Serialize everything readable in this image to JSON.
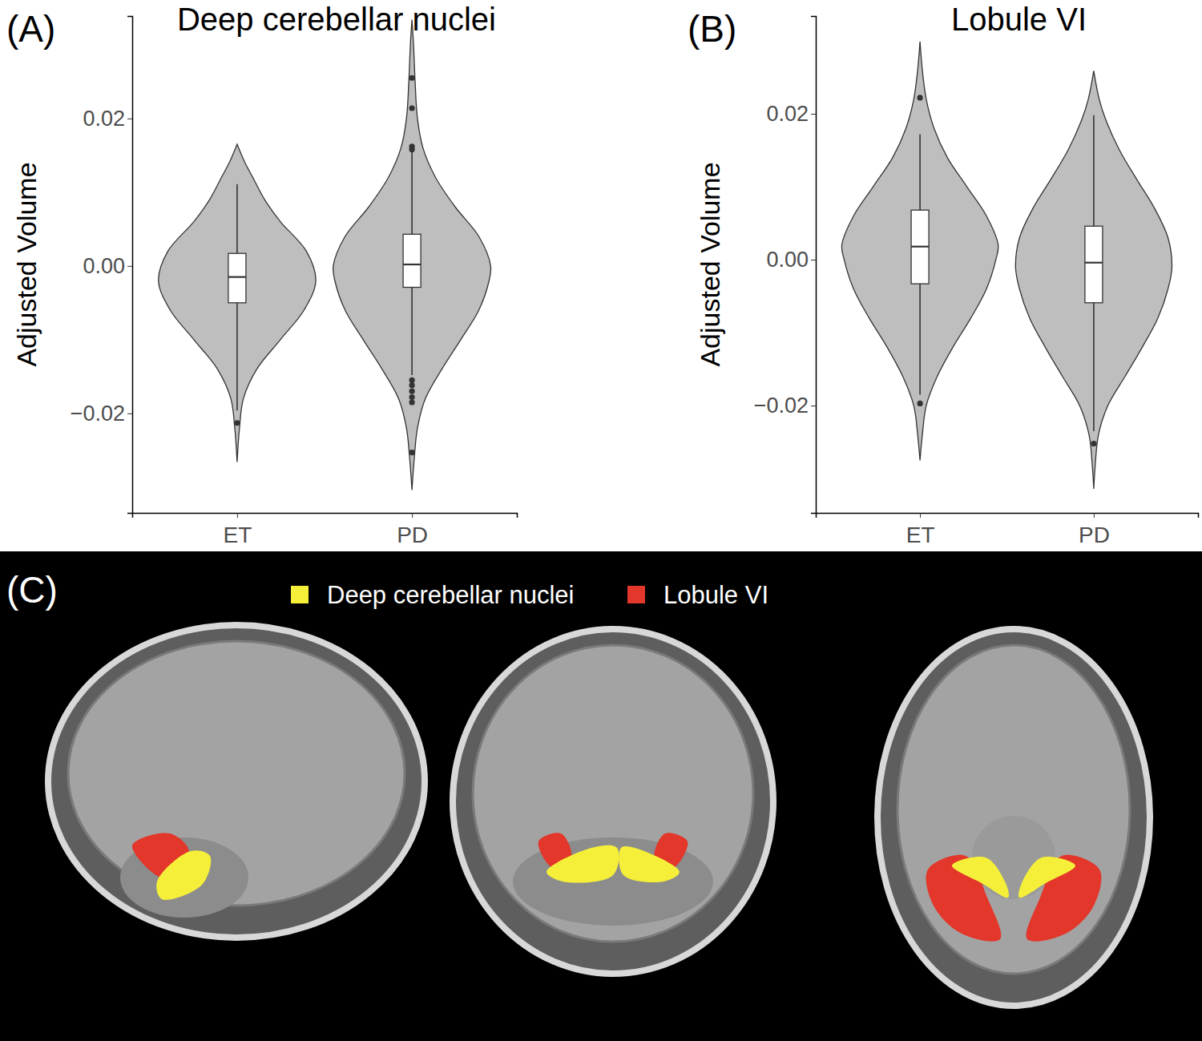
{
  "chart_data": [
    {
      "type": "violin",
      "title": "Deep cerebellar nuclei",
      "annotations": [
        "(A)"
      ],
      "y_label": "Adjusted Volume",
      "categories": [
        "ET",
        "PD"
      ],
      "color": "#bebebe",
      "ylim": [
        -0.0335,
        0.0339
      ],
      "yticks": [
        {
          "value": -0.02,
          "label": "−0.02"
        },
        {
          "value": 0,
          "label": "0.00"
        },
        {
          "value": 0.02,
          "label": "0.02"
        }
      ],
      "violins": [
        {
          "density": {
            "y": [
              -0.0266,
              -0.022,
              -0.018,
              -0.014,
              -0.01,
              -0.006,
              -0.002,
              0.002,
              0.006,
              0.009,
              0.012,
              0.014,
              0.0165
            ],
            "width": [
              0,
              0.03,
              0.08,
              0.25,
              0.55,
              0.85,
              1.0,
              0.88,
              0.55,
              0.35,
              0.2,
              0.1,
              0
            ]
          },
          "box": {
            "whisker_low": -0.0196,
            "q1": -0.005,
            "median": -0.0015,
            "q3": 0.0017,
            "whisker_high": 0.0111
          },
          "outliers": [
            -0.0213
          ]
        },
        {
          "density": {
            "y": [
              -0.0304,
              -0.026,
              -0.022,
              -0.018,
              -0.014,
              -0.01,
              -0.006,
              -0.002,
              0.0,
              0.004,
              0.008,
              0.012,
              0.016,
              0.02,
              0.025,
              0.03,
              0.0334
            ],
            "width": [
              0,
              0.03,
              0.07,
              0.17,
              0.38,
              0.62,
              0.85,
              0.98,
              1.0,
              0.85,
              0.55,
              0.3,
              0.14,
              0.07,
              0.04,
              0.02,
              0
            ]
          },
          "box": {
            "whisker_low": -0.0148,
            "q1": -0.0029,
            "median": 0.0002,
            "q3": 0.0043,
            "whisker_high": 0.0155
          },
          "outliers": [
            0.0255,
            0.0214,
            0.0162,
            0.0158,
            -0.0155,
            -0.0162,
            -0.017,
            -0.0178,
            -0.0185,
            -0.0253
          ]
        }
      ]
    },
    {
      "type": "violin",
      "title": "Lobule VI",
      "annotations": [
        "(B)"
      ],
      "y_label": "Adjusted Volume",
      "categories": [
        "ET",
        "PD"
      ],
      "color": "#bebebe",
      "ylim": [
        -0.0347,
        0.0334
      ],
      "yticks": [
        {
          "value": -0.02,
          "label": "−0.02"
        },
        {
          "value": 0,
          "label": "0.00"
        },
        {
          "value": 0.02,
          "label": "0.02"
        }
      ],
      "violins": [
        {
          "density": {
            "y": [
              -0.0275,
              -0.024,
              -0.02,
              -0.016,
              -0.012,
              -0.008,
              -0.004,
              0.0,
              0.002,
              0.006,
              0.01,
              0.014,
              0.018,
              0.022,
              0.026,
              0.0299
            ],
            "width": [
              0,
              0.03,
              0.08,
              0.22,
              0.42,
              0.65,
              0.85,
              0.97,
              1.0,
              0.85,
              0.6,
              0.35,
              0.18,
              0.08,
              0.03,
              0
            ]
          },
          "box": {
            "whisker_low": -0.0185,
            "q1": -0.0033,
            "median": 0.0018,
            "q3": 0.0068,
            "whisker_high": 0.0172
          },
          "outliers": [
            0.0222,
            -0.0197
          ]
        },
        {
          "density": {
            "y": [
              -0.0314,
              -0.028,
              -0.024,
              -0.02,
              -0.016,
              -0.012,
              -0.008,
              -0.004,
              -0.001,
              0.003,
              0.007,
              0.011,
              0.015,
              0.019,
              0.022,
              0.0259
            ],
            "width": [
              0,
              0.02,
              0.06,
              0.18,
              0.4,
              0.62,
              0.82,
              0.95,
              1.0,
              0.95,
              0.78,
              0.55,
              0.33,
              0.16,
              0.07,
              0
            ]
          },
          "box": {
            "whisker_low": -0.0235,
            "q1": -0.0059,
            "median": -0.0004,
            "q3": 0.0046,
            "whisker_high": 0.0198
          },
          "outliers": [
            -0.0252
          ]
        }
      ]
    }
  ],
  "panel_c": {
    "label": "(C)",
    "legend": [
      {
        "name": "Deep cerebellar nuclei",
        "color": "#f5ef3a"
      },
      {
        "name": "Lobule VI",
        "color": "#e2372a"
      }
    ]
  }
}
